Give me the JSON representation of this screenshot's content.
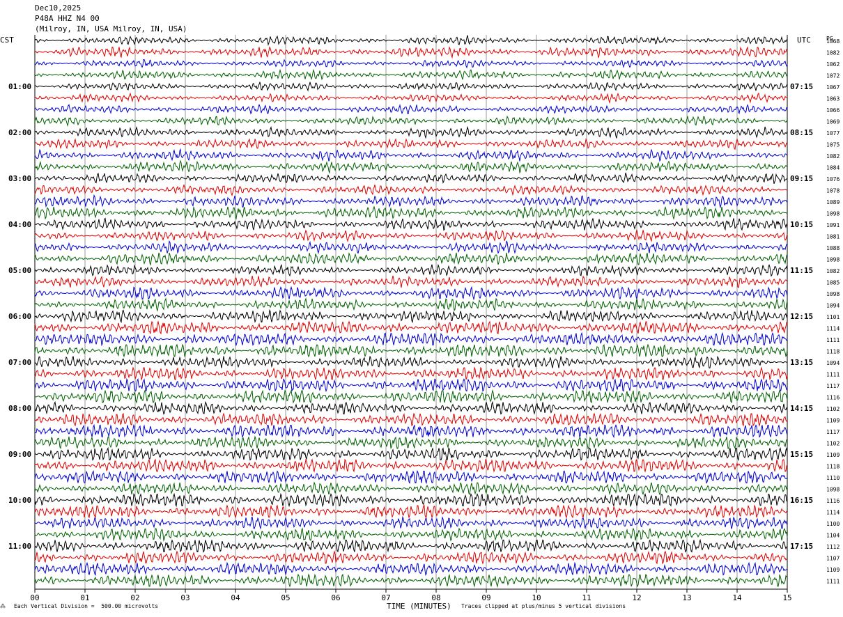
{
  "header": {
    "date": "Dec10,2025",
    "station": "P48A HHZ N4 00",
    "location": "(Milroy, IN, USA Milroy, IN, USA)"
  },
  "left_tz": "CST",
  "right_tz": "UTC",
  "right_col_header": "PG",
  "footer": {
    "scale_note": "Each Vertical Division =  500.00 microvolts",
    "clip_note": "Traces clipped at plus/minus 5 vertical divisions",
    "mark": "⁂"
  },
  "colors": {
    "trace_cycle": [
      "#000000",
      "#e00000",
      "#0000d0",
      "#006000"
    ],
    "grid": "#000000"
  },
  "chart_data": {
    "type": "line",
    "title": "P48A HHZ N4 00",
    "xlabel": "TIME (MINUTES)",
    "ylabel": "",
    "xlim": [
      0,
      15
    ],
    "x_ticks": [
      "00",
      "01",
      "02",
      "03",
      "04",
      "05",
      "06",
      "07",
      "08",
      "09",
      "10",
      "11",
      "12",
      "13",
      "14",
      "15"
    ],
    "row_count": 48,
    "left_hour_labels": [
      "01:00",
      "02:00",
      "03:00",
      "04:00",
      "05:00",
      "06:00",
      "07:00",
      "08:00",
      "09:00",
      "10:00",
      "11:00"
    ],
    "right_hour_labels": [
      "07:15",
      "08:15",
      "09:15",
      "10:15",
      "11:15",
      "12:15",
      "13:15",
      "14:15",
      "15:15",
      "16:15",
      "17:15"
    ],
    "row_values": [
      1068,
      1082,
      1062,
      1072,
      1067,
      1063,
      1066,
      1069,
      1077,
      1075,
      1082,
      1084,
      1076,
      1078,
      1089,
      1098,
      1091,
      1081,
      1088,
      1098,
      1082,
      1085,
      1098,
      1094,
      1101,
      1114,
      1111,
      1118,
      1094,
      1111,
      1117,
      1116,
      1102,
      1109,
      1117,
      1102,
      1109,
      1118,
      1110,
      1098,
      1116,
      1114,
      1100,
      1104,
      1112,
      1107,
      1109,
      1111
    ],
    "grid": true
  }
}
